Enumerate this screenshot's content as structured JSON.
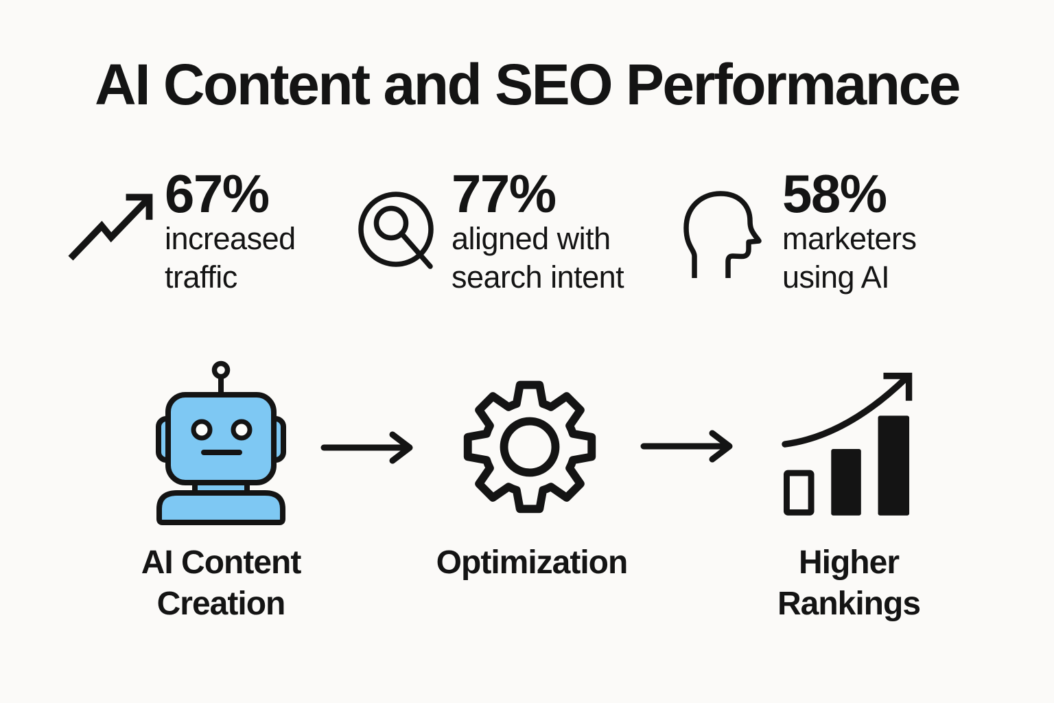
{
  "title": "AI Content and SEO Performance",
  "colors": {
    "ink": "#141414",
    "background": "#FBFAF8",
    "robot_blue": "#7EC8F3"
  },
  "stats": [
    {
      "icon": "trending-up-icon",
      "value": "67%",
      "label": "increased\ntraffic"
    },
    {
      "icon": "search-icon",
      "value": "77%",
      "label": "aligned with\nsearch intent"
    },
    {
      "icon": "head-profile-icon",
      "value": "58%",
      "label": "marketers\nusing AI"
    }
  ],
  "flow": {
    "connector_icon": "arrow-right-icon",
    "steps": [
      {
        "icon": "robot-icon",
        "label": "AI Content\nCreation"
      },
      {
        "icon": "gear-icon",
        "label": "Optimization"
      },
      {
        "icon": "bar-chart-growth-icon",
        "label": "Higher\nRankings"
      }
    ]
  }
}
